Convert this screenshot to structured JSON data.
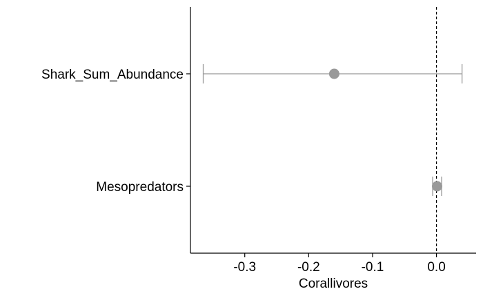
{
  "chart_data": {
    "type": "scatter",
    "subtype": "coefficient-plot",
    "xlabel": "Corallivores",
    "ylabel": "",
    "xlim": [
      -0.385,
      0.062
    ],
    "xticks": [
      -0.3,
      -0.2,
      -0.1,
      0.0
    ],
    "xtick_labels": [
      "-0.3",
      "-0.2",
      "-0.1",
      "0.0"
    ],
    "reference_line_x": 0.0,
    "reference_line_style": "dashed",
    "grid": false,
    "categories": [
      "Shark_Sum_Abundance",
      "Mesopredators"
    ],
    "estimates": [
      {
        "label": "Shark_Sum_Abundance",
        "estimate": -0.16,
        "lower": -0.365,
        "upper": 0.04
      },
      {
        "label": "Mesopredators",
        "estimate": 0.001,
        "lower": -0.006,
        "upper": 0.008
      }
    ],
    "point_color": "#999999",
    "errorbar_color": "#999999"
  }
}
